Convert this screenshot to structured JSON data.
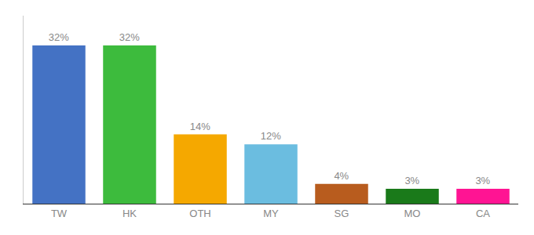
{
  "chart_data": {
    "type": "bar",
    "categories": [
      "TW",
      "HK",
      "OTH",
      "MY",
      "SG",
      "MO",
      "CA"
    ],
    "values": [
      32,
      32,
      14,
      12,
      4,
      3,
      3
    ],
    "value_labels": [
      "32%",
      "32%",
      "14%",
      "12%",
      "4%",
      "3%",
      "3%"
    ],
    "colors": [
      "#4472c4",
      "#3dbb3d",
      "#f5a800",
      "#6bbde0",
      "#b85c1e",
      "#1a7a1a",
      "#ff1493"
    ],
    "ylim": [
      0,
      38
    ],
    "data_labels": true,
    "tick_labels": "x",
    "grid": false
  }
}
